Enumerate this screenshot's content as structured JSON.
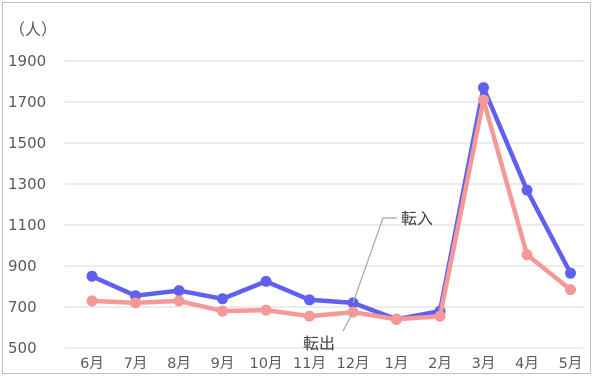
{
  "chart_data": {
    "type": "line",
    "title": "",
    "unit_label": "（人）",
    "xlabel": "",
    "ylabel": "",
    "categories": [
      "6月",
      "7月",
      "8月",
      "9月",
      "10月",
      "11月",
      "12月",
      "1月",
      "2月",
      "3月",
      "4月",
      "5月"
    ],
    "y_ticks": [
      500,
      700,
      900,
      1100,
      1300,
      1500,
      1700,
      1900
    ],
    "ylim": [
      450,
      1950
    ],
    "grid": true,
    "legend": "none",
    "series": [
      {
        "name": "転入",
        "color": "#6060ee",
        "values": [
          850,
          755,
          780,
          740,
          825,
          735,
          720,
          640,
          680,
          1770,
          1270,
          865
        ]
      },
      {
        "name": "転出",
        "color": "#f59898",
        "values": [
          730,
          720,
          730,
          680,
          685,
          655,
          675,
          640,
          655,
          1710,
          955,
          785
        ]
      }
    ],
    "annotations": [
      {
        "text": "転入",
        "series": 0,
        "category_index": 6
      },
      {
        "text": "転出",
        "series": 1,
        "category_index": 6
      }
    ]
  }
}
